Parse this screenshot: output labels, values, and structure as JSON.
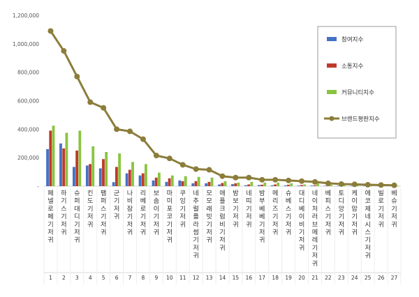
{
  "chart_data": {
    "type": "bar",
    "title": "",
    "xlabel": "",
    "ylabel": "",
    "ylim": [
      0,
      1200000
    ],
    "yticks": [
      "-",
      "200,000",
      "400,000",
      "600,000",
      "800,000",
      "1,000,000",
      "1,200,000"
    ],
    "grid": false,
    "legend_position": "top-right",
    "categories": [
      "페넬로페 기저귀",
      "하기스 기저귀",
      "슈퍼대디 기저귀",
      "킨도 기저귀",
      "팸퍼스 기저귀",
      "군 기저귀",
      "나비잠 기저귀",
      "리베로 기저귀",
      "보솜이 기저귀",
      "마미포코 기저귀",
      "쿠잉 기저귀",
      "네추럴플라썸 기저귀",
      "모모래빗 기저귀",
      "애플크럼비 기저귀",
      "밤보 기저귀",
      "네띠 기저귀",
      "밤부베베 기저귀",
      "메리즈 기저귀",
      "슈베스 기저귀",
      "대디베이비 기저귀",
      "네이처러브메레 기저귀",
      "베피스 기저귀",
      "토디앙 기저귀",
      "케이맘 기저귀",
      "에코제네시스 기저귀",
      "빌로 기저귀",
      "베슈 기저귀"
    ],
    "category_labels": [
      "페넬로페기저귀",
      "하기스기저귀",
      "슈퍼대디기저귀",
      "킨도기저귀",
      "팸퍼스기저귀",
      "군기저귀",
      "나비잠기저귀",
      "리베로기저귀",
      "보솜이기저귀",
      "마미포코기저귀",
      "쿠잉기저귀",
      "네추럴플라썸기저귀",
      "모모래빗기저귀",
      "애플크럼비기저귀",
      "밤보기저귀",
      "네띠기저귀",
      "밤부베베기저귀",
      "메리즈기저귀",
      "슈베스기저귀",
      "대디베이비기저귀",
      "네이처러브메레기저귀",
      "베피스기저귀",
      "토디앙기저귀",
      "케이맘기저귀",
      "에코제네시스기저귀",
      "빌로기저귀",
      "베슈기저귀"
    ],
    "ranks": [
      "1",
      "2",
      "3",
      "4",
      "5",
      "6",
      "7",
      "8",
      "9",
      "10",
      "11",
      "12",
      "13",
      "14",
      "15",
      "16",
      "17",
      "18",
      "19",
      "20",
      "21",
      "22",
      "23",
      "24",
      "25",
      "26",
      "27"
    ],
    "series": [
      {
        "name": "참여지수",
        "type": "bar",
        "color": "#4472c4",
        "values": [
          260000,
          300000,
          135000,
          145000,
          125000,
          28000,
          90000,
          75000,
          40000,
          30000,
          40000,
          20000,
          20000,
          12000,
          14000,
          6000,
          8000,
          6000,
          5000,
          4000,
          4000,
          3000,
          3000,
          2500,
          2000,
          1500,
          1000
        ]
      },
      {
        "name": "소통지수",
        "type": "bar",
        "color": "#c0392b",
        "values": [
          390000,
          265000,
          250000,
          155000,
          190000,
          135000,
          115000,
          90000,
          60000,
          55000,
          35000,
          35000,
          30000,
          22000,
          20000,
          12000,
          10000,
          12000,
          10000,
          8000,
          6000,
          5000,
          4000,
          3000,
          2500,
          2000,
          1500
        ]
      },
      {
        "name": "커뮤니티지수",
        "type": "bar",
        "color": "#8ac43f",
        "values": [
          425000,
          375000,
          390000,
          280000,
          240000,
          230000,
          170000,
          155000,
          95000,
          75000,
          70000,
          65000,
          60000,
          35000,
          25000,
          30000,
          25000,
          25000,
          20000,
          12000,
          20000,
          10000,
          12000,
          10000,
          5000,
          5000,
          4000
        ]
      },
      {
        "name": "브랜드평판지수",
        "type": "line",
        "color": "#8b7d3a",
        "values": [
          1090000,
          950000,
          770000,
          590000,
          550000,
          400000,
          385000,
          330000,
          215000,
          195000,
          150000,
          120000,
          115000,
          70000,
          60000,
          60000,
          45000,
          45000,
          40000,
          35000,
          30000,
          20000,
          15000,
          13000,
          10000,
          8000,
          6000
        ]
      }
    ]
  }
}
